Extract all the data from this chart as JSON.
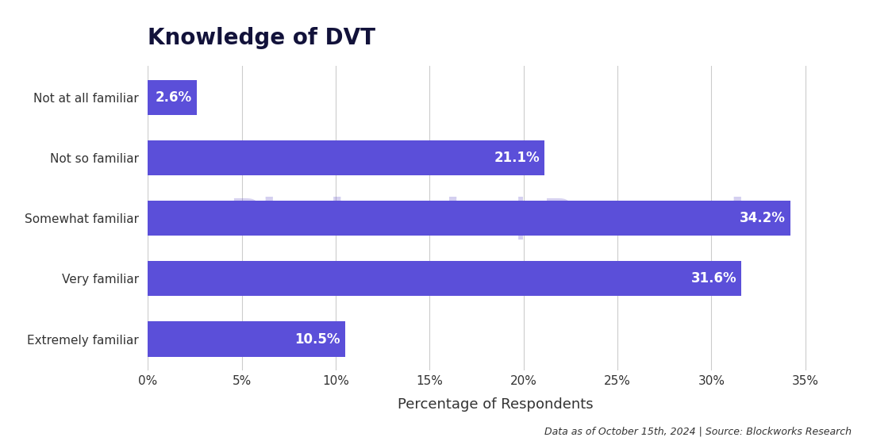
{
  "title": "Knowledge of DVT",
  "categories": [
    "Not at all familiar",
    "Not so familiar",
    "Somewhat familiar",
    "Very familiar",
    "Extremely familiar"
  ],
  "values": [
    2.6,
    21.1,
    34.2,
    31.6,
    10.5
  ],
  "labels": [
    "2.6%",
    "21.1%",
    "34.2%",
    "31.6%",
    "10.5%"
  ],
  "bar_color": "#5B4FD9",
  "xlabel": "Percentage of Respondents",
  "xlim": [
    0,
    37
  ],
  "xticks": [
    0,
    5,
    10,
    15,
    20,
    25,
    30,
    35
  ],
  "xtick_labels": [
    "0%",
    "5%",
    "10%",
    "15%",
    "20%",
    "25%",
    "30%",
    "35%"
  ],
  "footnote": "Data as of October 15th, 2024 | Source: Blockworks Research",
  "background_color": "#ffffff",
  "title_color": "#12123a",
  "label_color": "#ffffff",
  "tick_label_color": "#333333",
  "watermark_text": "Blockworks | Research",
  "watermark_color": "#6655cc",
  "watermark_alpha": 0.28,
  "title_fontsize": 20,
  "label_fontsize": 12,
  "tick_fontsize": 11,
  "xlabel_fontsize": 13,
  "footnote_fontsize": 9,
  "bar_height": 0.58,
  "grid_color": "#cccccc"
}
